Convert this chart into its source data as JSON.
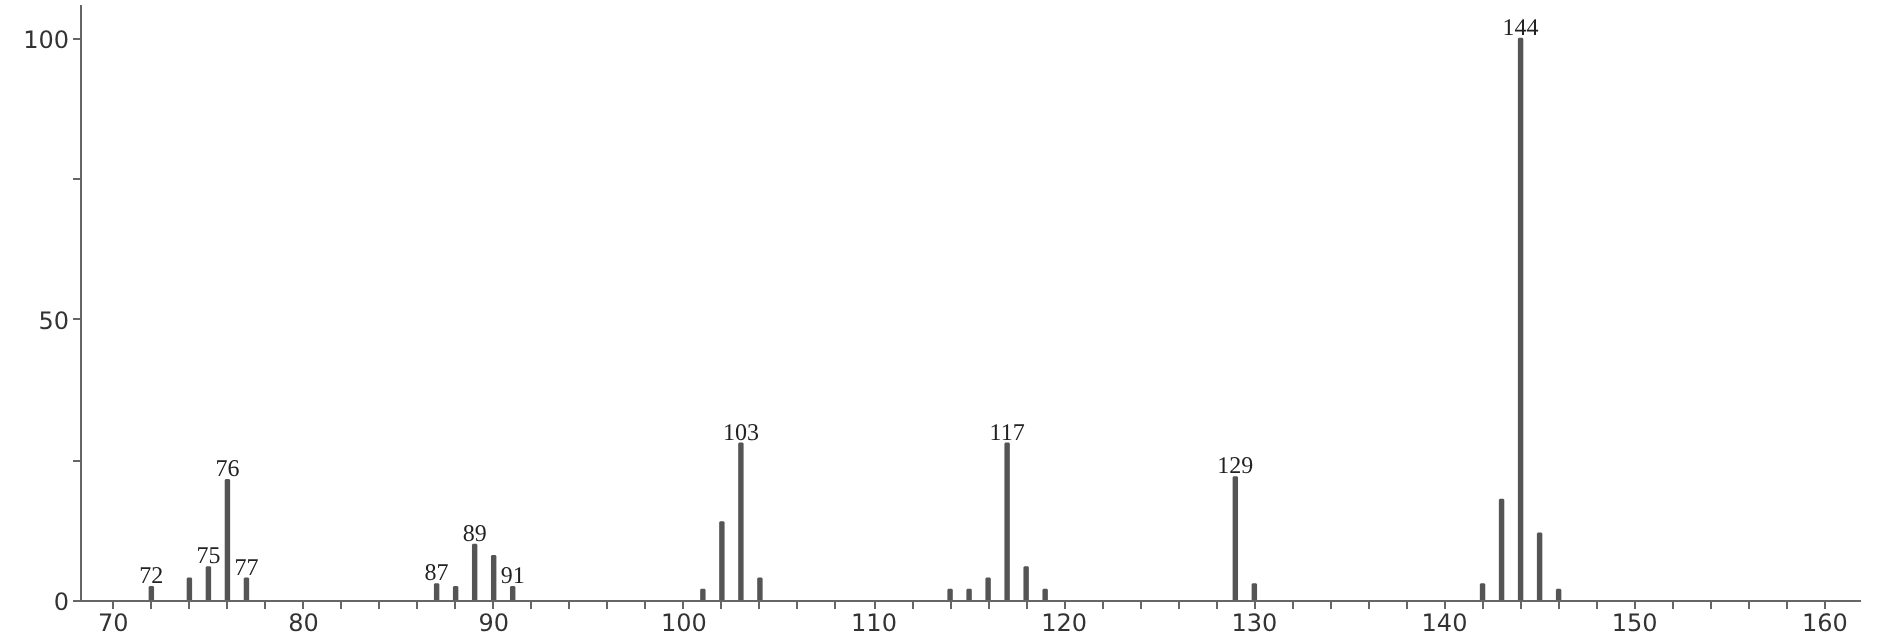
{
  "chart_data": {
    "type": "bar",
    "color": "#555555",
    "x": [
      72,
      74,
      75,
      76,
      77,
      87,
      88,
      89,
      90,
      91,
      101,
      102,
      103,
      104,
      114,
      115,
      116,
      117,
      118,
      119,
      129,
      130,
      142,
      143,
      144,
      145,
      146
    ],
    "values": [
      2.5,
      4,
      6,
      21.5,
      4,
      3,
      2.5,
      10,
      8,
      2.5,
      2,
      14,
      28,
      4,
      2,
      2,
      4,
      28,
      6,
      2,
      22,
      3,
      3,
      18,
      100,
      12,
      2
    ],
    "xlim": [
      68.3,
      161.9
    ],
    "ylim": [
      0,
      106
    ],
    "xticks": [
      70,
      {
        "value": 72,
        "label": null
      },
      {
        "value": 74,
        "label": null
      },
      {
        "value": 76,
        "label": null
      },
      {
        "value": 78,
        "label": null
      },
      80,
      {
        "value": 82,
        "label": null
      },
      {
        "value": 84,
        "label": null
      },
      {
        "value": 86,
        "label": null
      },
      {
        "value": 88,
        "label": null
      },
      90,
      {
        "value": 92,
        "label": null
      },
      {
        "value": 94,
        "label": null
      },
      {
        "value": 96,
        "label": null
      },
      {
        "value": 98,
        "label": null
      },
      100,
      {
        "value": 102,
        "label": null
      },
      {
        "value": 104,
        "label": null
      },
      {
        "value": 106,
        "label": null
      },
      {
        "value": 108,
        "label": null
      },
      110,
      {
        "value": 112,
        "label": null
      },
      {
        "value": 114,
        "label": null
      },
      {
        "value": 116,
        "label": null
      },
      {
        "value": 118,
        "label": null
      },
      120,
      {
        "value": 122,
        "label": null
      },
      {
        "value": 124,
        "label": null
      },
      {
        "value": 126,
        "label": null
      },
      {
        "value": 128,
        "label": null
      },
      130,
      {
        "value": 132,
        "label": null
      },
      {
        "value": 134,
        "label": null
      },
      {
        "value": 136,
        "label": null
      },
      {
        "value": 138,
        "label": null
      },
      140,
      {
        "value": 142,
        "label": null
      },
      {
        "value": 144,
        "label": null
      },
      {
        "value": 146,
        "label": null
      },
      {
        "value": 148,
        "label": null
      },
      150,
      {
        "value": 152,
        "label": null
      },
      {
        "value": 154,
        "label": null
      },
      {
        "value": 156,
        "label": null
      },
      {
        "value": 158,
        "label": null
      },
      160
    ],
    "yticks": [
      0,
      {
        "value": 25,
        "label": null
      },
      50,
      {
        "value": 75,
        "label": null
      },
      100
    ],
    "grid": false,
    "annotations": [
      {
        "text": "72",
        "x": 72,
        "y": 2.5
      },
      {
        "text": "75",
        "x": 75,
        "y": 6
      },
      {
        "text": "76",
        "x": 76,
        "y": 21.5
      },
      {
        "text": "77",
        "x": 77,
        "y": 4
      },
      {
        "text": "87",
        "x": 87,
        "y": 3
      },
      {
        "text": "89",
        "x": 89,
        "y": 10
      },
      {
        "text": "91",
        "x": 91,
        "y": 2.5
      },
      {
        "text": "103",
        "x": 103,
        "y": 28
      },
      {
        "text": "117",
        "x": 117,
        "y": 28
      },
      {
        "text": "129",
        "x": 129,
        "y": 22
      },
      {
        "text": "144",
        "x": 144,
        "y": 100
      }
    ]
  }
}
